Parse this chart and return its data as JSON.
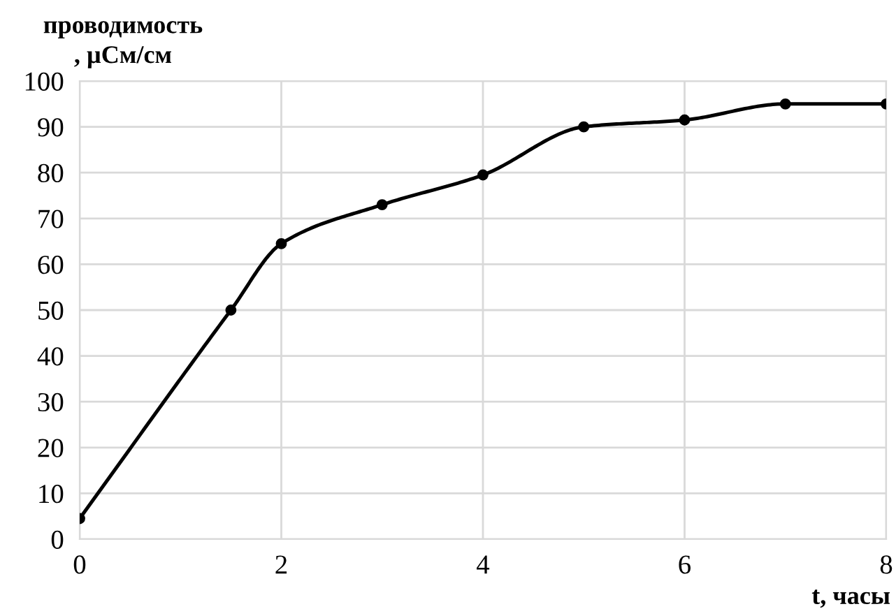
{
  "chart_data": {
    "type": "line",
    "ylabel": "проводимость\n, µСм/см",
    "xlabel": "t, часы",
    "x": [
      0,
      1.5,
      2,
      3,
      4,
      5,
      6,
      7,
      8
    ],
    "series": [
      {
        "color": "#000000",
        "values": [
          4.5,
          50,
          64.5,
          73,
          79.5,
          90,
          91.5,
          95,
          95
        ]
      }
    ],
    "xlim": [
      0,
      8
    ],
    "xticks": [
      0,
      2,
      4,
      6,
      8
    ],
    "ylim": [
      0,
      100
    ],
    "yticks": [
      0,
      10,
      20,
      30,
      40,
      50,
      60,
      70,
      80,
      90,
      100
    ],
    "grid": true,
    "marker": "circle",
    "line_style": "solid"
  }
}
